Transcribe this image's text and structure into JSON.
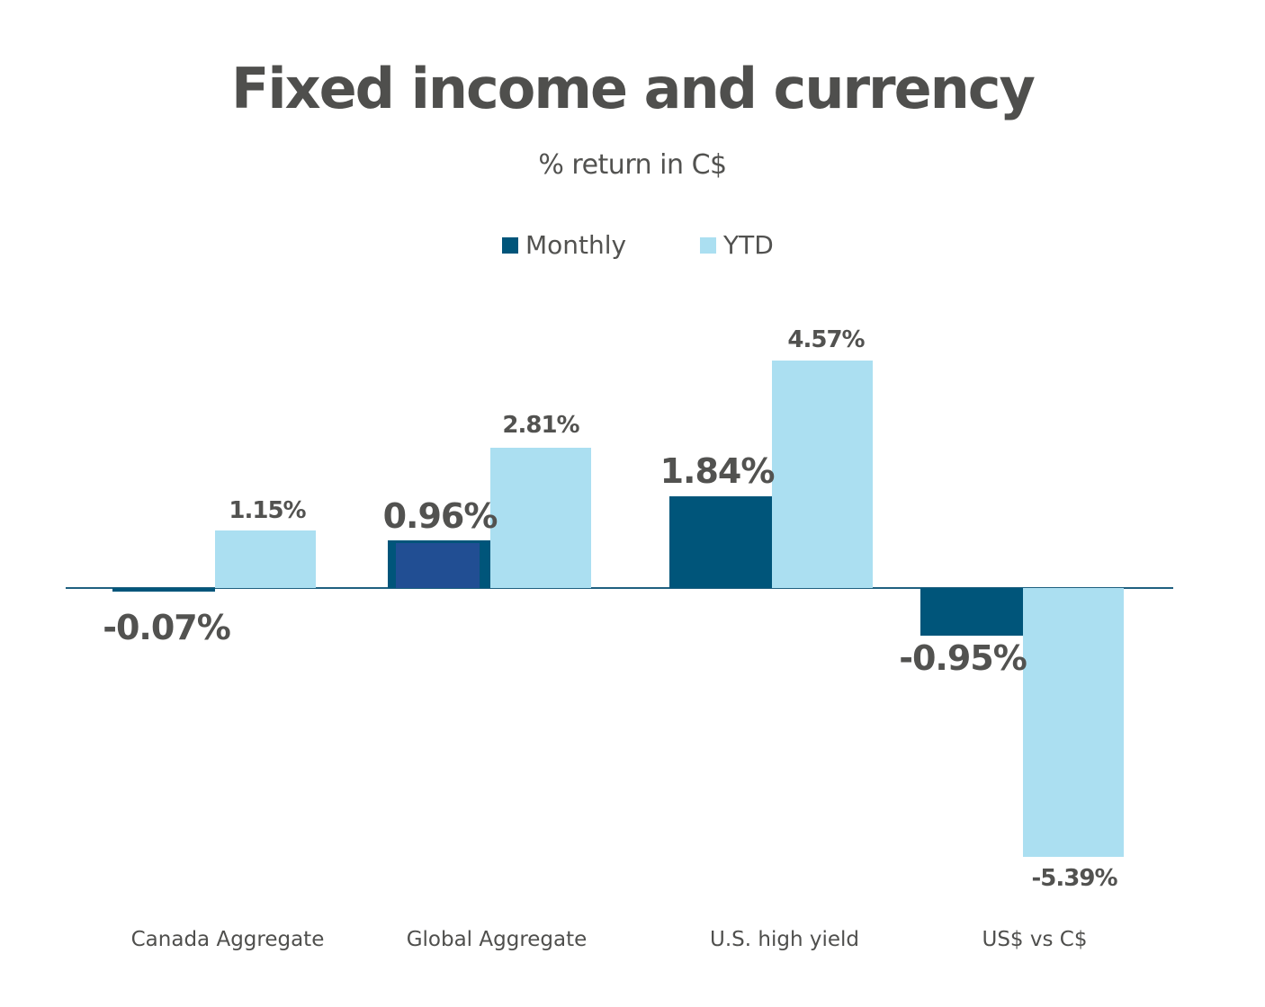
{
  "title": "Fixed income and currency",
  "subtitle": "% return in C$",
  "colors": {
    "monthly": "#00557a",
    "ytd": "#abdff1",
    "overlay": "#214e93",
    "axis": "#1f6080",
    "text": "#525250"
  },
  "legend": [
    {
      "label": "Monthly",
      "color": "#00557a"
    },
    {
      "label": "YTD",
      "color": "#abdff1"
    }
  ],
  "categories": [
    {
      "label": "Canada Aggregate",
      "monthly_label": "-0.07%",
      "ytd_label": "1.15%"
    },
    {
      "label": "Global Aggregate",
      "monthly_label": "0.96%",
      "ytd_label": "2.81%"
    },
    {
      "label": "U.S. high yield",
      "monthly_label": "1.84%",
      "ytd_label": "4.57%"
    },
    {
      "label": "US$ vs C$",
      "monthly_label": "-0.95%",
      "ytd_label": "-5.39%"
    }
  ],
  "chart_data": {
    "type": "bar",
    "title": "Fixed income and currency",
    "subtitle": "% return in C$",
    "categories": [
      "Canada Aggregate",
      "Global Aggregate",
      "U.S. high yield",
      "US$ vs C$"
    ],
    "series": [
      {
        "name": "Monthly",
        "values": [
          -0.07,
          0.96,
          1.84,
          -0.95
        ],
        "color": "#00557a"
      },
      {
        "name": "YTD",
        "values": [
          1.15,
          2.81,
          4.57,
          -5.39
        ],
        "color": "#abdff1"
      }
    ],
    "xlabel": "",
    "ylabel": "",
    "ylim": [
      -5.39,
      4.57
    ],
    "grid": false,
    "legend_position": "top",
    "data_labels": true
  }
}
